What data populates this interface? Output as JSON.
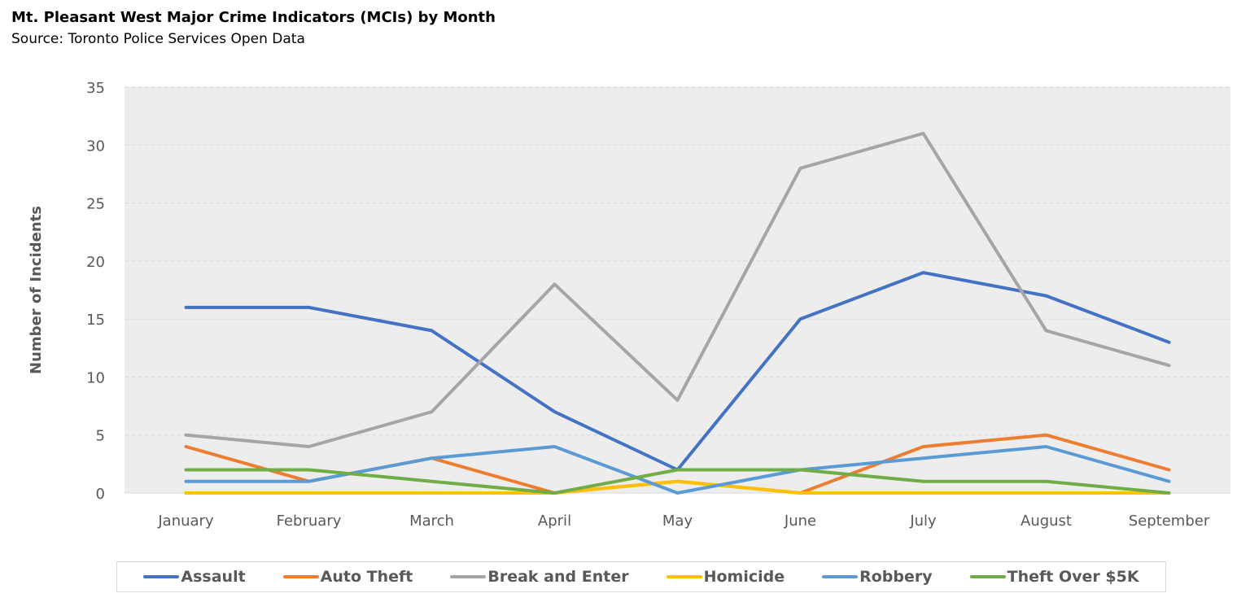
{
  "title": "Mt. Pleasant West Major Crime Indicators (MCIs) by Month",
  "subtitle": "Source: Toronto Police Services Open Data",
  "chart_data": {
    "type": "line",
    "ylabel": "Number of Incidents",
    "xlabel": "",
    "ylim": [
      0,
      35
    ],
    "yticks": [
      "0",
      "5",
      "10",
      "15",
      "20",
      "25",
      "30",
      "35"
    ],
    "categories": [
      "January",
      "February",
      "March",
      "April",
      "May",
      "June",
      "July",
      "August",
      "September"
    ],
    "grid": "horizontal dashed",
    "legend_position": "bottom",
    "series": [
      {
        "name": "Assault",
        "color": "#4472C4",
        "values": [
          16,
          16,
          14,
          7,
          2,
          15,
          19,
          17,
          13
        ]
      },
      {
        "name": "Auto Theft",
        "color": "#ED7D31",
        "values": [
          4,
          1,
          3,
          0,
          1,
          0,
          4,
          5,
          2
        ]
      },
      {
        "name": "Break and Enter",
        "color": "#A5A5A5",
        "values": [
          5,
          4,
          7,
          18,
          8,
          28,
          31,
          14,
          11
        ]
      },
      {
        "name": "Homicide",
        "color": "#FFC000",
        "values": [
          0,
          0,
          0,
          0,
          1,
          0,
          0,
          0,
          0
        ]
      },
      {
        "name": "Robbery",
        "color": "#5B9BD5",
        "values": [
          1,
          1,
          3,
          4,
          0,
          2,
          3,
          4,
          1
        ]
      },
      {
        "name": "Theft Over $5K",
        "color": "#70AD47",
        "values": [
          2,
          2,
          1,
          0,
          2,
          2,
          1,
          1,
          0
        ]
      }
    ],
    "plot_background": "#EDEDED"
  }
}
